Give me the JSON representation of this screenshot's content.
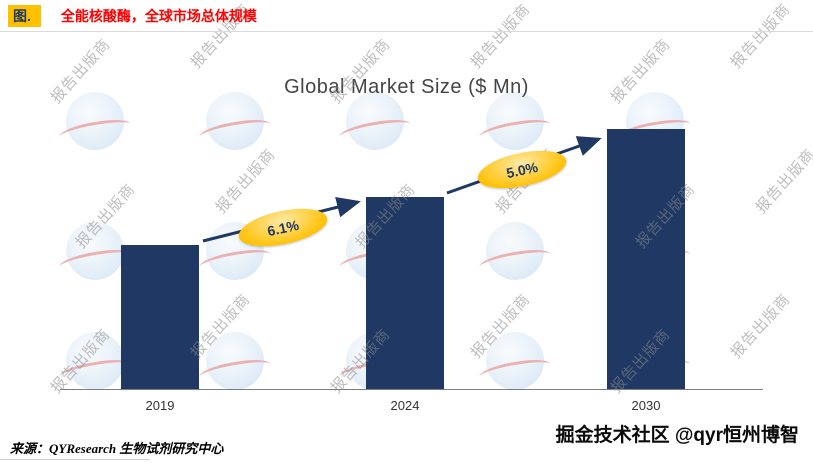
{
  "header": {
    "figure_label": "图.",
    "title": "全能核酸酶，全球市场总体规模"
  },
  "chart_data": {
    "type": "bar",
    "title": "Global Market Size ($ Mn)",
    "categories": [
      "2019",
      "2024",
      "2030"
    ],
    "values": [
      100,
      134,
      181
    ],
    "growth_labels": [
      "6.1%",
      "5.0%"
    ],
    "annotations": [
      {
        "label": "6.1%",
        "from": "2019",
        "to": "2024"
      },
      {
        "label": "5.0%",
        "from": "2024",
        "to": "2030"
      }
    ],
    "ylim": [
      0,
      200
    ],
    "y_axis_visible": false,
    "grid": false,
    "legend": false,
    "bar_color": "#1F3864",
    "annotation_fill": "#FFC000"
  },
  "watermark": {
    "text": "报告出版商",
    "logo_name": "qyresearch-globe"
  },
  "footer": {
    "source": "来源：QYResearch 生物试剂研究中心",
    "brand": "掘金技术社区 @qyr恒州博智"
  }
}
